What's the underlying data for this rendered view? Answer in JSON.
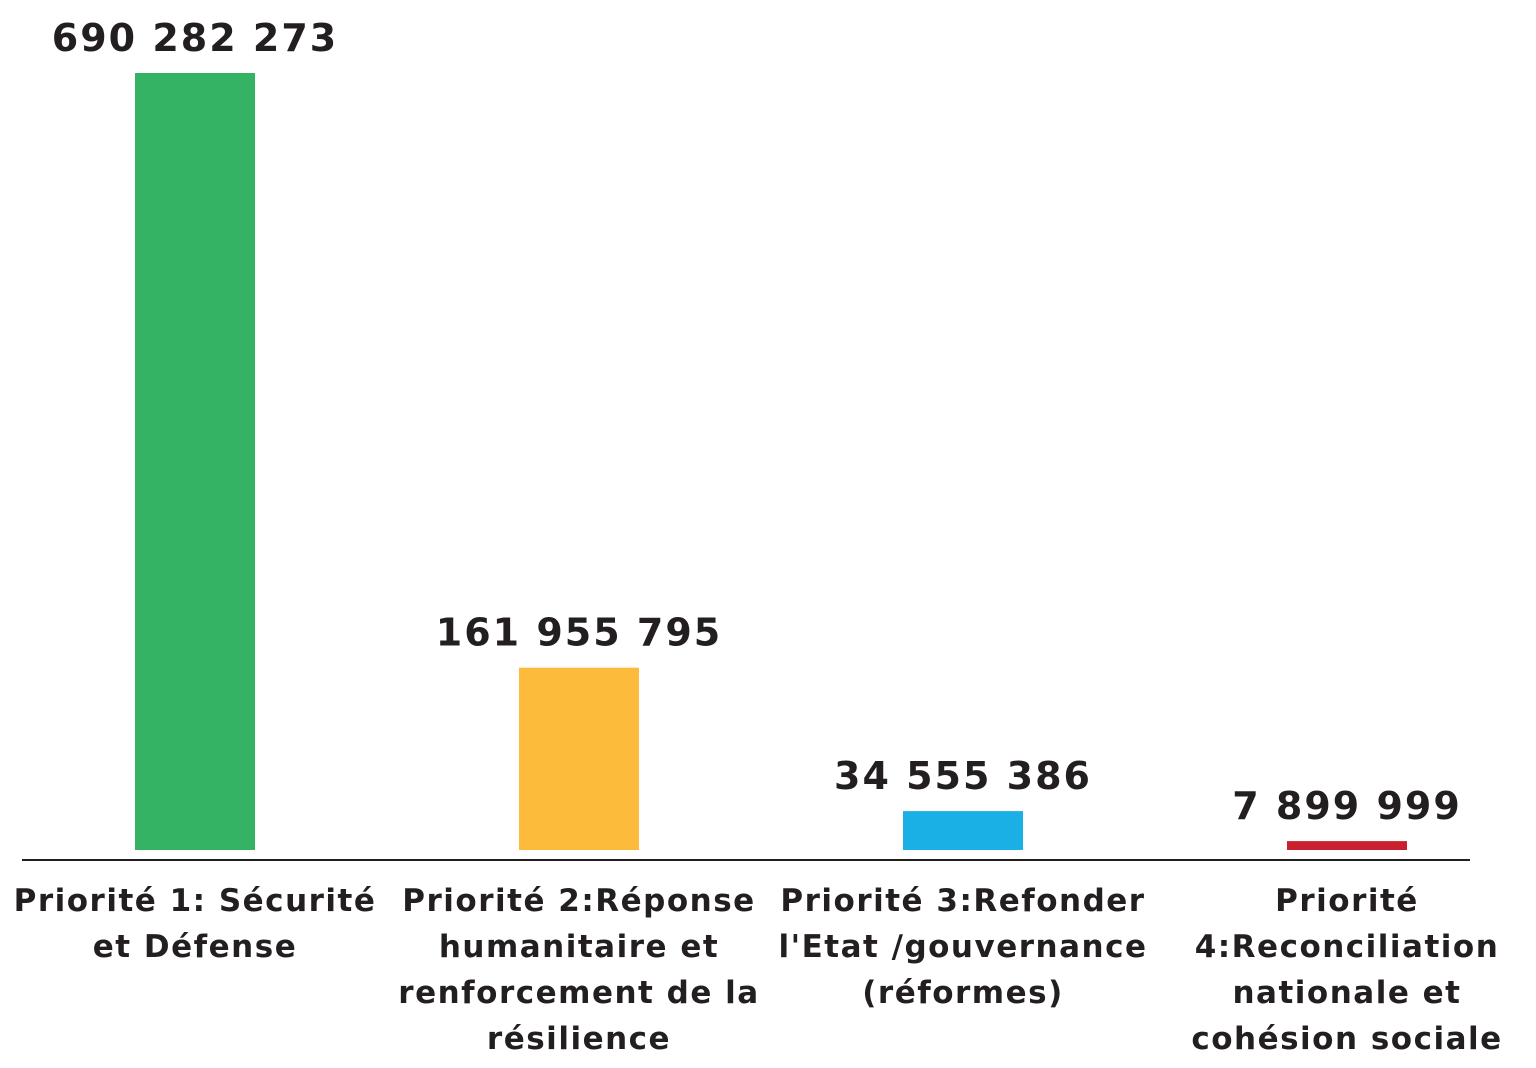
{
  "chart_data": {
    "type": "bar",
    "categories": [
      "Priorité 1: Sécurité et Défense",
      "Priorité 2:Réponse humanitaire et renforcement de la résilience",
      "Priorité 3:Refonder l'Etat /gouvernance (réformes)",
      "Priorité 4:Reconciliation nationale et cohésion sociale"
    ],
    "values": [
      690282273,
      161955795,
      34555386,
      7899999
    ],
    "value_labels": [
      "690 282 273",
      "161 955 795",
      "34 555 386",
      "7 899 999"
    ],
    "colors": [
      "#34b364",
      "#fdbb3b",
      "#1ab0e6",
      "#c8202f"
    ]
  }
}
